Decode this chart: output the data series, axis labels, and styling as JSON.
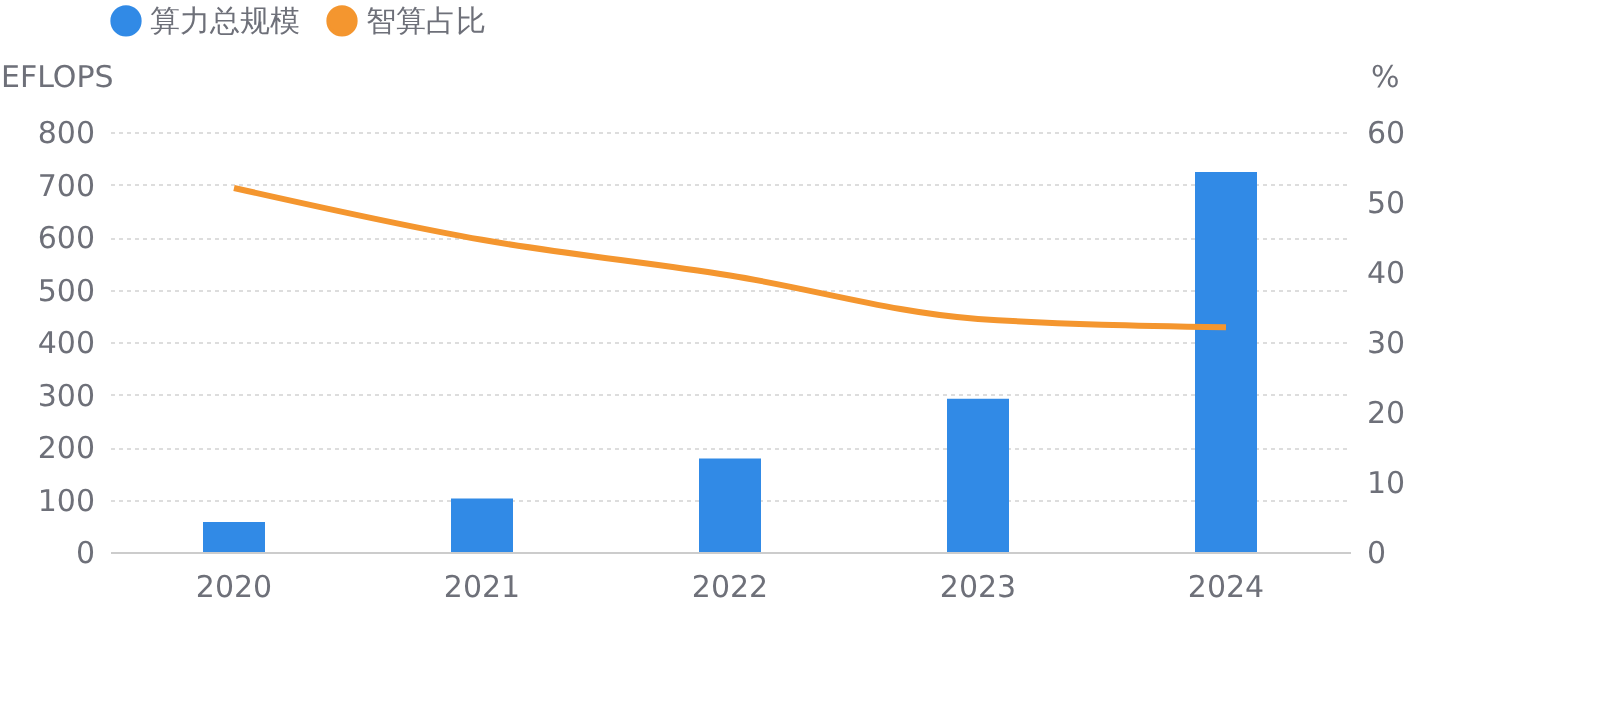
{
  "chart_data": {
    "type": "bar",
    "categories": [
      "2020",
      "2021",
      "2022",
      "2023",
      "2024"
    ],
    "ylabel": "EFLOPS",
    "y2label": "%",
    "ylim": [
      0,
      800
    ],
    "yticks": [
      0,
      100,
      200,
      300,
      400,
      500,
      600,
      700,
      800
    ],
    "y2lim": [
      0,
      60
    ],
    "y2ticks": [
      0,
      10,
      20,
      30,
      40,
      50,
      60
    ],
    "grid": "y",
    "legend": "top left",
    "series": [
      {
        "name": "算力总规模",
        "color": "#318ae6",
        "values": [
          57,
          102,
          178,
          292,
          724
        ]
      },
      {
        "name": "智算占比",
        "type": "line",
        "axis": "y2",
        "color": "#f4962f",
        "values": [
          52,
          44.6,
          39.5,
          33.3,
          32.1
        ]
      }
    ]
  }
}
